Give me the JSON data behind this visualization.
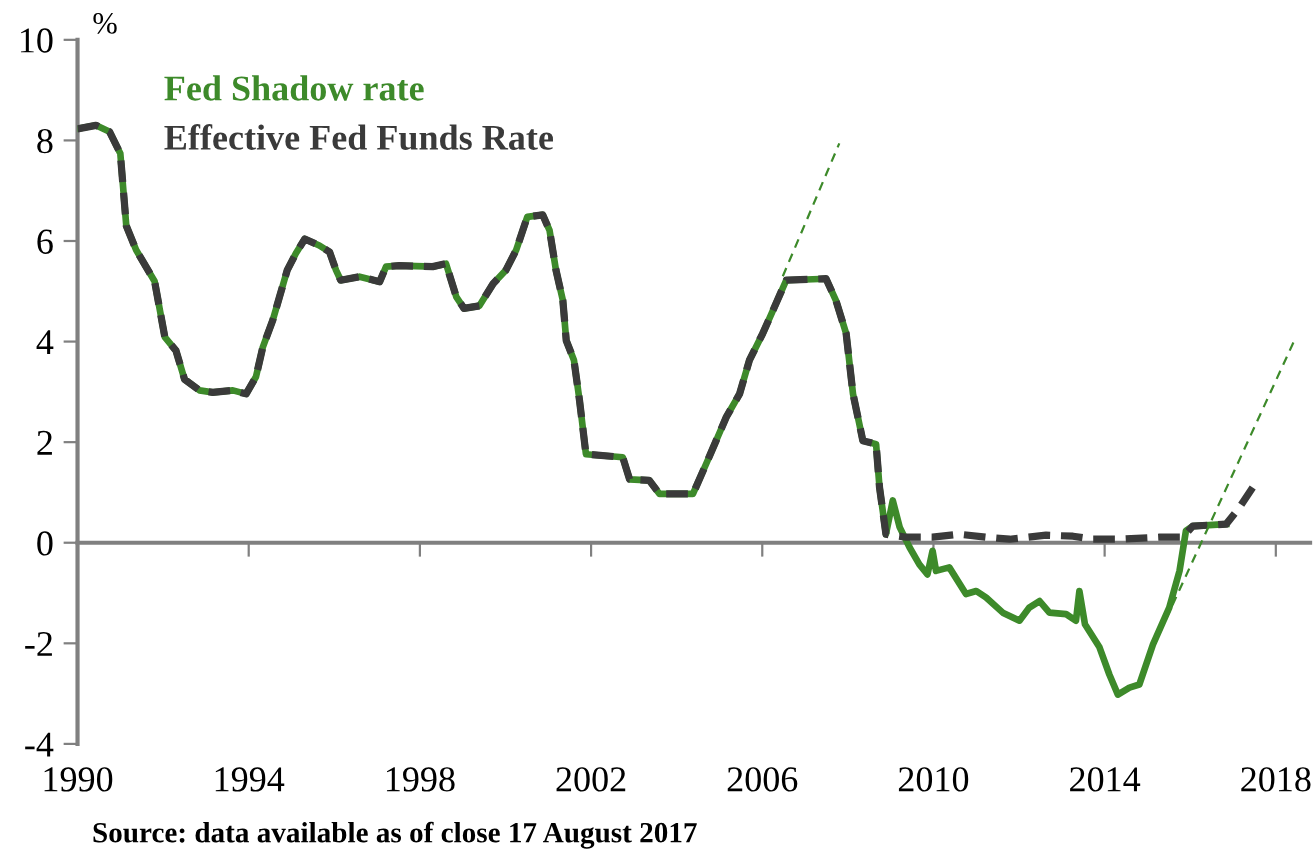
{
  "chart_data": {
    "type": "line",
    "ylabel": "%",
    "annotations": [
      "Source: data available as of close 17 August 2017"
    ],
    "xlim": [
      1990,
      2018.8
    ],
    "xticks": [
      1990,
      1994,
      1998,
      2002,
      2006,
      2010,
      2014,
      2018
    ],
    "ylim": [
      -4,
      10
    ],
    "yticks": [
      -4,
      -2,
      0,
      2,
      4,
      6,
      8,
      10
    ],
    "legend": "top left",
    "series": [
      {
        "name": "Fed Shadow rate",
        "color": "#3d8a2a",
        "line_style": "solid",
        "x": [
          1990.0,
          1990.43,
          1990.75,
          1991.0,
          1991.14,
          1991.37,
          1991.8,
          1992.04,
          1992.3,
          1992.5,
          1992.85,
          1993.16,
          1993.63,
          1993.94,
          1994.17,
          1994.33,
          1994.56,
          1994.72,
          1994.9,
          1995.1,
          1995.31,
          1995.65,
          1995.89,
          1996.04,
          1996.15,
          1996.59,
          1997.06,
          1997.21,
          1997.52,
          1998.3,
          1998.61,
          1998.85,
          1999.03,
          1999.39,
          1999.71,
          2000.01,
          2000.25,
          2000.51,
          2000.87,
          2001.03,
          2001.18,
          2001.34,
          2001.42,
          2001.6,
          2001.73,
          2001.88,
          2002.74,
          2002.9,
          2003.36,
          2003.6,
          2004.38,
          2004.69,
          2005.16,
          2005.47,
          2005.7,
          2006.01,
          2006.25,
          2006.56,
          2007.49,
          2007.72,
          2007.96,
          2008.12,
          2008.35,
          2008.66,
          2008.74,
          2008.89,
          2009.05,
          2009.21,
          2009.44,
          2009.67,
          2009.86,
          2009.98,
          2010.06,
          2010.37,
          2010.76,
          2011.0,
          2011.23,
          2011.62,
          2012.01,
          2012.24,
          2012.48,
          2012.71,
          2013.1,
          2013.33,
          2013.41,
          2013.54,
          2013.88,
          2014.11,
          2014.31,
          2014.58,
          2014.81,
          2015.13,
          2015.51,
          2015.75,
          2015.9,
          2016.06,
          2016.84
        ],
        "values": [
          8.23,
          8.3,
          8.17,
          7.74,
          6.3,
          5.82,
          5.2,
          4.09,
          3.82,
          3.25,
          3.03,
          2.99,
          3.03,
          2.96,
          3.3,
          3.89,
          4.42,
          4.89,
          5.42,
          5.75,
          6.04,
          5.91,
          5.78,
          5.42,
          5.22,
          5.29,
          5.19,
          5.49,
          5.51,
          5.49,
          5.55,
          4.89,
          4.66,
          4.71,
          5.15,
          5.42,
          5.82,
          6.48,
          6.52,
          6.21,
          5.42,
          4.82,
          4.02,
          3.63,
          2.83,
          1.76,
          1.7,
          1.26,
          1.24,
          0.97,
          0.97,
          1.57,
          2.5,
          2.96,
          3.63,
          4.16,
          4.62,
          5.22,
          5.25,
          4.82,
          4.16,
          2.96,
          2.03,
          1.96,
          1.1,
          0.17,
          0.84,
          0.31,
          -0.09,
          -0.43,
          -0.63,
          -0.16,
          -0.56,
          -0.49,
          -1.02,
          -0.96,
          -1.09,
          -1.39,
          -1.55,
          -1.29,
          -1.16,
          -1.39,
          -1.42,
          -1.55,
          -0.96,
          -1.62,
          -2.08,
          -2.62,
          -3.02,
          -2.88,
          -2.82,
          -2.02,
          -1.29,
          -0.56,
          0.24,
          0.33,
          0.37
        ]
      },
      {
        "name": "Effective Fed Funds Rate",
        "color": "#3a3a3a",
        "line_style": "dashed",
        "x": [
          1990.0,
          1990.43,
          1990.75,
          1991.0,
          1991.14,
          1991.37,
          1991.8,
          1992.04,
          1992.3,
          1992.5,
          1992.85,
          1993.16,
          1993.63,
          1993.94,
          1994.17,
          1994.33,
          1994.56,
          1994.72,
          1994.9,
          1995.1,
          1995.31,
          1995.65,
          1995.89,
          1996.04,
          1996.15,
          1996.59,
          1997.06,
          1997.21,
          1997.52,
          1998.3,
          1998.61,
          1998.85,
          1999.03,
          1999.39,
          1999.71,
          2000.01,
          2000.25,
          2000.51,
          2000.87,
          2001.03,
          2001.18,
          2001.34,
          2001.42,
          2001.6,
          2001.73,
          2001.88,
          2002.74,
          2002.9,
          2003.36,
          2003.6,
          2004.38,
          2004.69,
          2005.16,
          2005.47,
          2005.7,
          2006.01,
          2006.25,
          2006.56,
          2007.49,
          2007.72,
          2007.96,
          2008.12,
          2008.35,
          2008.66,
          2008.74,
          2008.89,
          2009.36,
          2009.98,
          2010.6,
          2011.23,
          2011.78,
          2012.63,
          2013.26,
          2013.72,
          2014.35,
          2015.28,
          2015.83,
          2016.06,
          2016.84,
          2017.15,
          2017.46
        ],
        "values": [
          8.23,
          8.3,
          8.17,
          7.74,
          6.3,
          5.82,
          5.2,
          4.09,
          3.82,
          3.25,
          3.03,
          2.99,
          3.03,
          2.96,
          3.3,
          3.89,
          4.42,
          4.89,
          5.42,
          5.75,
          6.04,
          5.91,
          5.78,
          5.42,
          5.22,
          5.29,
          5.19,
          5.49,
          5.51,
          5.49,
          5.55,
          4.89,
          4.66,
          4.71,
          5.15,
          5.42,
          5.82,
          6.48,
          6.52,
          6.21,
          5.42,
          4.82,
          4.02,
          3.63,
          2.83,
          1.76,
          1.7,
          1.26,
          1.24,
          0.97,
          0.97,
          1.57,
          2.5,
          2.96,
          3.63,
          4.16,
          4.62,
          5.22,
          5.25,
          4.82,
          4.16,
          2.96,
          2.03,
          1.96,
          1.1,
          0.17,
          0.11,
          0.11,
          0.17,
          0.11,
          0.07,
          0.15,
          0.13,
          0.07,
          0.07,
          0.11,
          0.11,
          0.33,
          0.37,
          0.7,
          1.1
        ]
      },
      {
        "color": "#3d8a2a",
        "line_style": "dotted",
        "x": [
          2006.48,
          2007.8
        ],
        "values": [
          5.3,
          7.94
        ]
      },
      {
        "color": "#3d8a2a",
        "line_style": "dotted",
        "x": [
          2015.13,
          2018.47
        ],
        "values": [
          -2.08,
          4.09
        ]
      }
    ]
  }
}
